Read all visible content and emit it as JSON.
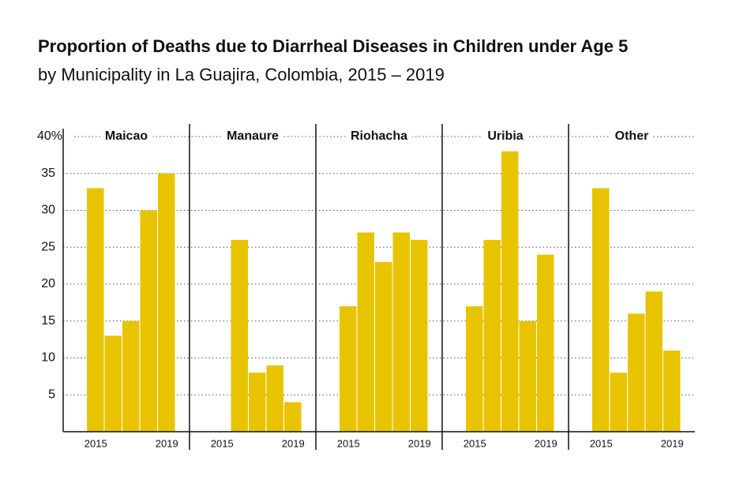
{
  "chart_data": {
    "type": "bar",
    "title": "Proportion of Deaths due to Diarrheal Diseases in Children under Age 5",
    "subtitle": "by Municipality in La Guajira, Colombia, 2015 – 2019",
    "categories": [
      "2015",
      null,
      null,
      null,
      "2019"
    ],
    "series": [
      {
        "name": "Maicao",
        "color": "#e8c400",
        "values": [
          33,
          13,
          15,
          30,
          35
        ]
      },
      {
        "name": "Manaure",
        "color": "#e8c400",
        "values": [
          null,
          26,
          8,
          9,
          4
        ]
      },
      {
        "name": "Riohacha",
        "color": "#e8c400",
        "values": [
          17,
          27,
          23,
          27,
          26
        ]
      },
      {
        "name": "Uribia",
        "color": "#e8c400",
        "values": [
          17,
          26,
          38,
          15,
          24
        ]
      },
      {
        "name": "Other",
        "color": "#e8c400",
        "values": [
          33,
          8,
          16,
          19,
          11
        ]
      }
    ],
    "ylim": [
      0,
      40
    ],
    "yticks": [
      5,
      10,
      15,
      20,
      25,
      30,
      35,
      {
        "value": 40,
        "label": "40%"
      }
    ],
    "grid": true
  }
}
